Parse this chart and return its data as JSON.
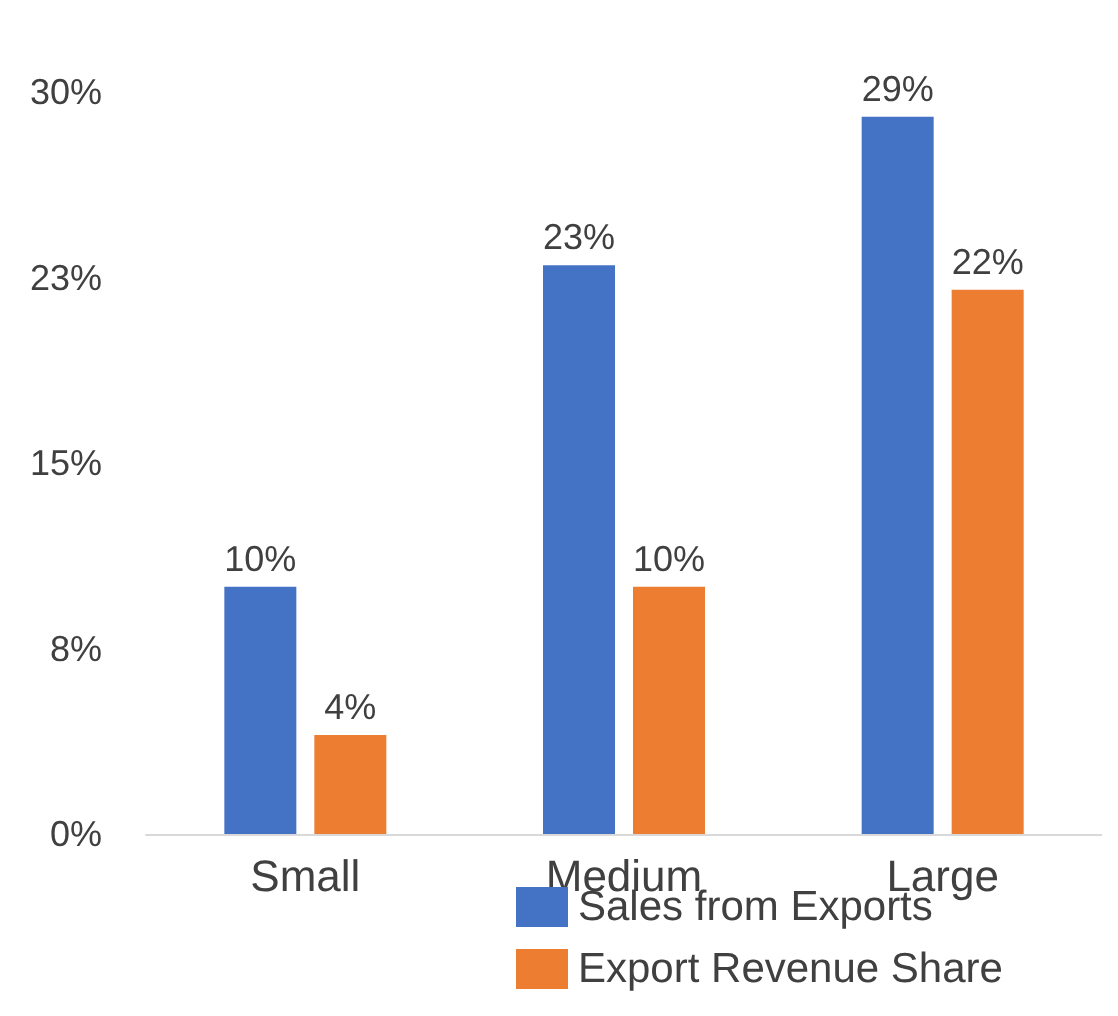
{
  "chart_data": {
    "type": "bar",
    "categories": [
      "Small",
      "Medium",
      "Large"
    ],
    "series": [
      {
        "name": "Sales from Exports",
        "color": "#4472c4",
        "values": [
          10,
          23,
          29
        ],
        "value_labels": [
          "10%",
          "23%",
          "29%"
        ]
      },
      {
        "name": "Export Revenue Share",
        "color": "#ed7d31",
        "values": [
          4,
          10,
          22
        ],
        "value_labels": [
          "4%",
          "10%",
          "22%"
        ]
      }
    ],
    "ylim": [
      0,
      30
    ],
    "yticks": [
      {
        "value": 0,
        "label": "0%"
      },
      {
        "value": 7.5,
        "label": "8%"
      },
      {
        "value": 15,
        "label": "15%"
      },
      {
        "value": 22.5,
        "label": "23%"
      },
      {
        "value": 30,
        "label": "30%"
      }
    ],
    "grid": false,
    "legend": "bottom right"
  }
}
